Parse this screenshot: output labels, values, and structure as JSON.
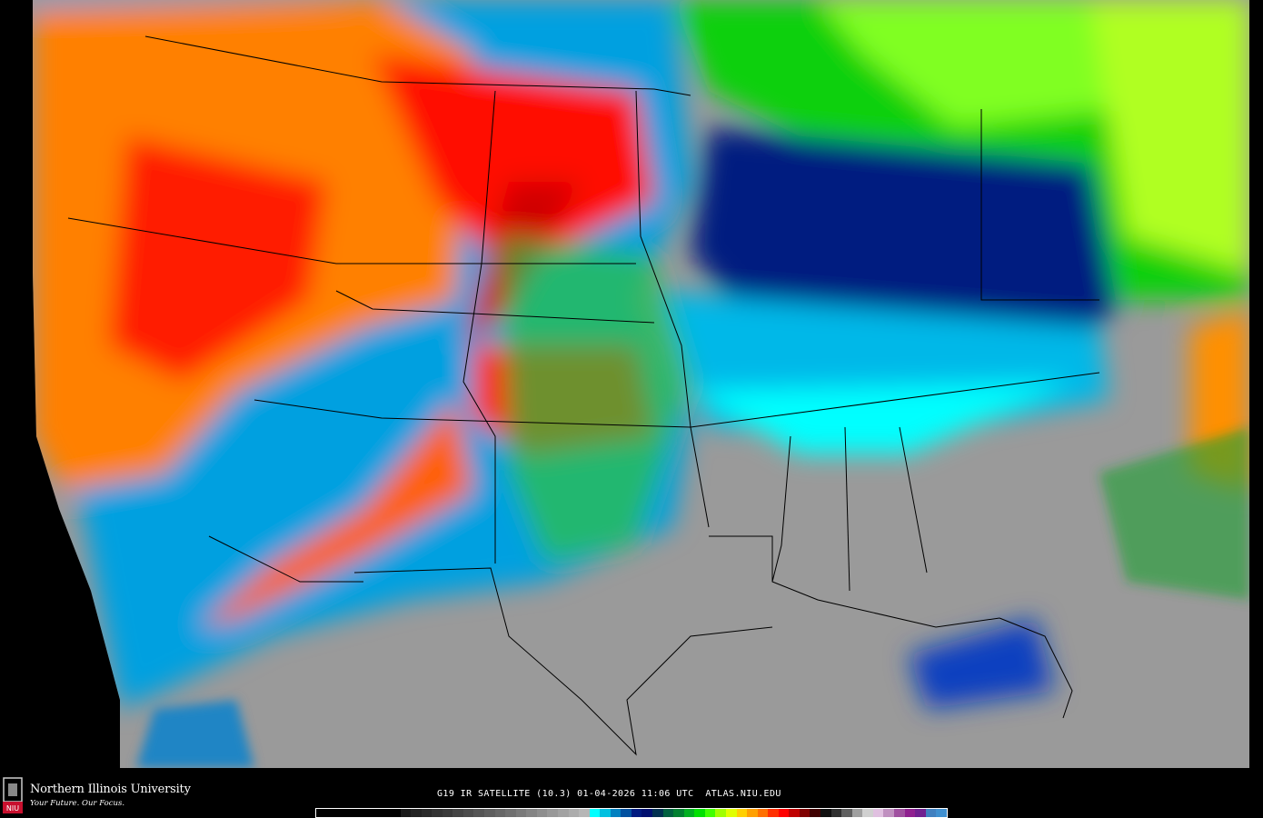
{
  "branding": {
    "university": "Northern Illinois University",
    "tagline": "Your Future. Our Focus.",
    "logo_text": "NIU"
  },
  "caption": "G19 IR SATELLITE (10.3) 01-04-2026 11:06 UTC  ATLAS.NIU.EDU",
  "map": {
    "type": "infrared satellite image, Lambert projection, contiguous United States",
    "boundaries": "state and national borders in black",
    "colors": {
      "background": "#000000",
      "clear": "#9a9a9a",
      "cold_cyan": "#00e0ff",
      "blue": "#001a80",
      "green": "#00c020",
      "yellow": "#e0ff00",
      "orange": "#ff9000",
      "red": "#ff1000",
      "dark_red": "#800000"
    }
  },
  "colorbar": [
    "#000000",
    "#000000",
    "#000000",
    "#000000",
    "#000000",
    "#000000",
    "#000000",
    "#000000",
    "#1a1a1a",
    "#222222",
    "#2a2a2a",
    "#333333",
    "#3a3a3a",
    "#444444",
    "#4c4c4c",
    "#555555",
    "#5e5e5e",
    "#676767",
    "#707070",
    "#7a7a7a",
    "#848484",
    "#8e8e8e",
    "#989898",
    "#a2a2a2",
    "#acacac",
    "#b6b6b6",
    "#00ffff",
    "#00c0e0",
    "#0080c0",
    "#0050a0",
    "#001a80",
    "#001070",
    "#003050",
    "#006040",
    "#008030",
    "#00b020",
    "#00e000",
    "#40ff00",
    "#a0ff00",
    "#e0ff00",
    "#ffd000",
    "#ffa000",
    "#ff7000",
    "#ff3000",
    "#ff0000",
    "#c00000",
    "#800000",
    "#400000",
    "#101010",
    "#303030",
    "#606060",
    "#a0a0a0",
    "#d0d0d0",
    "#e0c0e0",
    "#c090c0",
    "#a050a0",
    "#902090",
    "#702090",
    "#4080c0",
    "#4090d0"
  ]
}
